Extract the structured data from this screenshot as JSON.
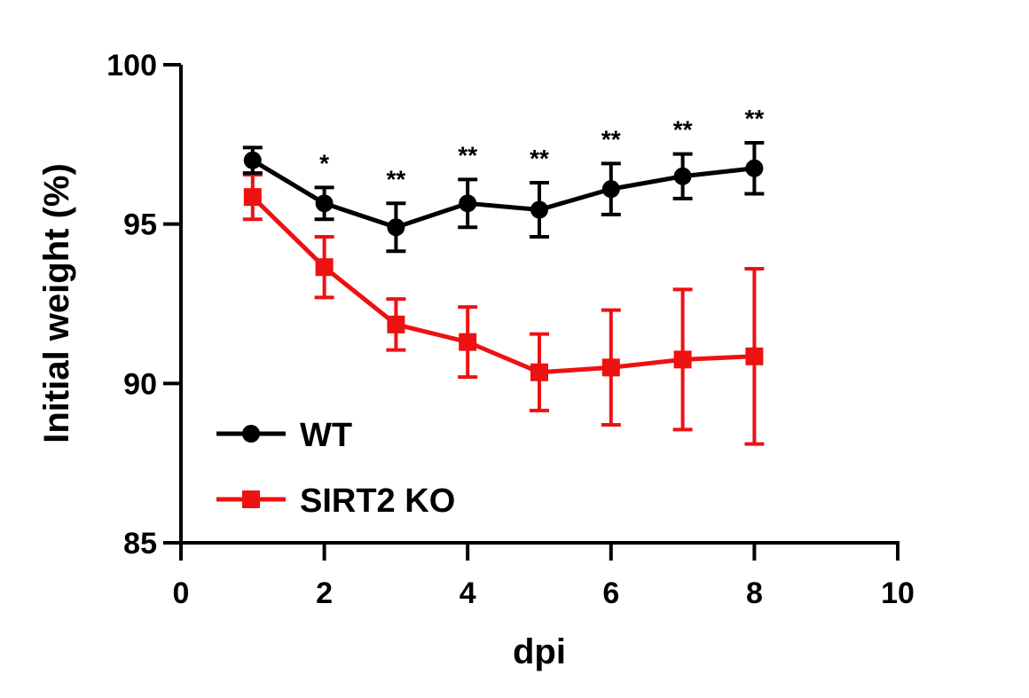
{
  "chart_data": {
    "type": "line",
    "xlabel": "dpi",
    "ylabel": "Initial weight (%)",
    "xlim": [
      0,
      10
    ],
    "ylim": [
      85,
      100
    ],
    "x_ticks": [
      0,
      2,
      4,
      6,
      8,
      10
    ],
    "y_ticks": [
      85,
      90,
      95,
      100
    ],
    "grid": false,
    "legend_position": "bottom-left",
    "x": [
      1,
      2,
      3,
      4,
      5,
      6,
      7,
      8
    ],
    "series": [
      {
        "name": "WT",
        "color": "#000000",
        "marker": "circle",
        "values": [
          97.0,
          95.65,
          94.9,
          95.65,
          95.45,
          96.1,
          96.5,
          96.75
        ],
        "error": [
          0.4,
          0.5,
          0.75,
          0.75,
          0.85,
          0.8,
          0.7,
          0.8
        ]
      },
      {
        "name": "SIRT2 KO",
        "color": "#ee1111",
        "marker": "square",
        "values": [
          95.85,
          93.65,
          91.85,
          91.3,
          90.35,
          90.5,
          90.75,
          90.85
        ],
        "error": [
          0.7,
          0.95,
          0.8,
          1.1,
          1.2,
          1.8,
          2.2,
          2.75
        ]
      }
    ],
    "significance": [
      "",
      "*",
      "**",
      "**",
      "**",
      "**",
      "**",
      "**"
    ]
  }
}
